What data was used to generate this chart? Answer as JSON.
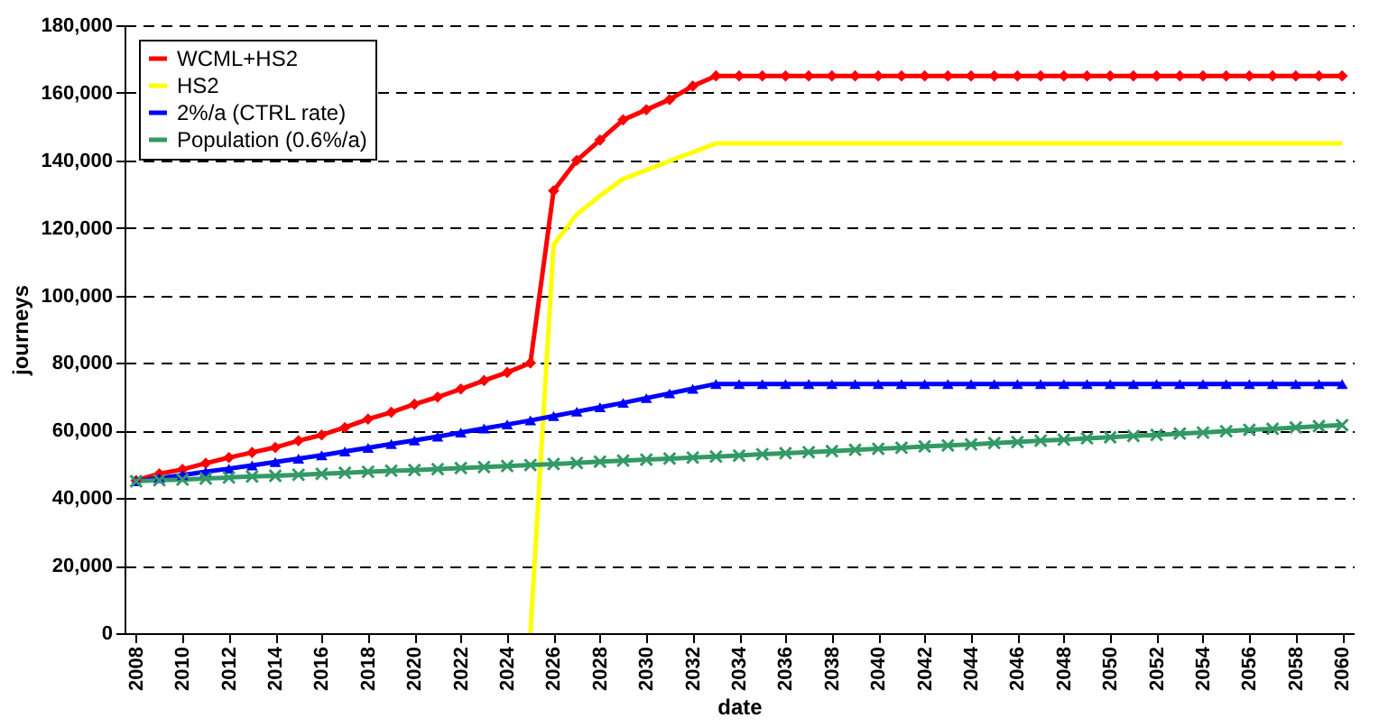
{
  "chart_data": {
    "type": "line",
    "xlabel": "date",
    "ylabel": "journeys",
    "x": [
      2008,
      2009,
      2010,
      2011,
      2012,
      2013,
      2014,
      2015,
      2016,
      2017,
      2018,
      2019,
      2020,
      2021,
      2022,
      2023,
      2024,
      2025,
      2026,
      2027,
      2028,
      2029,
      2030,
      2031,
      2032,
      2033,
      2034,
      2035,
      2036,
      2037,
      2038,
      2039,
      2040,
      2041,
      2042,
      2043,
      2044,
      2045,
      2046,
      2047,
      2048,
      2049,
      2050,
      2051,
      2052,
      2053,
      2054,
      2055,
      2056,
      2057,
      2058,
      2059,
      2060
    ],
    "xlim": [
      2007.5,
      2060.5
    ],
    "xticks": [
      2008,
      2010,
      2012,
      2014,
      2016,
      2018,
      2020,
      2022,
      2024,
      2026,
      2028,
      2030,
      2032,
      2034,
      2036,
      2038,
      2040,
      2042,
      2044,
      2046,
      2048,
      2050,
      2052,
      2054,
      2056,
      2058,
      2060
    ],
    "ylim": [
      0,
      180000
    ],
    "yticks": [
      {
        "value": 0,
        "label": "0"
      },
      {
        "value": 20000,
        "label": "20,000"
      },
      {
        "value": 40000,
        "label": "40,000"
      },
      {
        "value": 60000,
        "label": "60,000"
      },
      {
        "value": 80000,
        "label": "80,000"
      },
      {
        "value": 100000,
        "label": "100,000"
      },
      {
        "value": 120000,
        "label": "120,000"
      },
      {
        "value": 140000,
        "label": "140,000"
      },
      {
        "value": 160000,
        "label": "160,000"
      },
      {
        "value": 180000,
        "label": "180,000"
      }
    ],
    "grid": "y",
    "legend": "top left",
    "line_style": "solid",
    "series": [
      {
        "name": "WCML+HS2",
        "color": "#ff0000",
        "marker": "diamond",
        "values": [
          45200,
          47200,
          48500,
          50300,
          52000,
          53500,
          55000,
          57000,
          58700,
          60900,
          63400,
          65400,
          67800,
          69900,
          72300,
          74800,
          77200,
          80000,
          131000,
          140000,
          146000,
          152000,
          155000,
          158000,
          162000,
          165000,
          165000,
          165000,
          165000,
          165000,
          165000,
          165000,
          165000,
          165000,
          165000,
          165000,
          165000,
          165000,
          165000,
          165000,
          165000,
          165000,
          165000,
          165000,
          165000,
          165000,
          165000,
          165000,
          165000,
          165000,
          165000,
          165000,
          165000
        ]
      },
      {
        "name": "HS2",
        "color": "#ffff00",
        "marker": "none",
        "values": [
          null,
          null,
          null,
          null,
          null,
          null,
          null,
          null,
          null,
          null,
          null,
          null,
          null,
          null,
          null,
          null,
          null,
          0,
          115000,
          124000,
          129500,
          134500,
          137100,
          139800,
          142400,
          145000,
          145000,
          145000,
          145000,
          145000,
          145000,
          145000,
          145000,
          145000,
          145000,
          145000,
          145000,
          145000,
          145000,
          145000,
          145000,
          145000,
          145000,
          145000,
          145000,
          145000,
          145000,
          145000,
          145000,
          145000,
          145000,
          145000,
          145000
        ]
      },
      {
        "name": "2%/a (CTRL rate)",
        "color": "#0000ff",
        "marker": "triangle",
        "values": [
          45000,
          45900,
          46800,
          47800,
          48700,
          49700,
          50700,
          51700,
          52700,
          53800,
          54900,
          56000,
          57100,
          58200,
          59400,
          60600,
          61800,
          63000,
          64300,
          65600,
          66900,
          68200,
          69600,
          71000,
          72400,
          73800,
          73800,
          73800,
          73800,
          73800,
          73800,
          73800,
          73800,
          73800,
          73800,
          73800,
          73800,
          73800,
          73800,
          73800,
          73800,
          73800,
          73800,
          73800,
          73800,
          73800,
          73800,
          73800,
          73800,
          73800,
          73800,
          73800,
          73800
        ]
      },
      {
        "name": "Population (0.6%/a)",
        "color": "#339966",
        "marker": "cross",
        "values": [
          45000,
          45300,
          45500,
          45800,
          46100,
          46400,
          46600,
          46900,
          47200,
          47500,
          47800,
          48100,
          48300,
          48600,
          48900,
          49200,
          49500,
          49800,
          50100,
          50400,
          50800,
          51100,
          51400,
          51700,
          52000,
          52300,
          52600,
          53000,
          53300,
          53600,
          53900,
          54300,
          54600,
          54900,
          55300,
          55600,
          55900,
          56300,
          56600,
          57000,
          57300,
          57700,
          58000,
          58400,
          58700,
          59100,
          59400,
          59800,
          60200,
          60500,
          60900,
          61300,
          61600
        ]
      }
    ]
  }
}
